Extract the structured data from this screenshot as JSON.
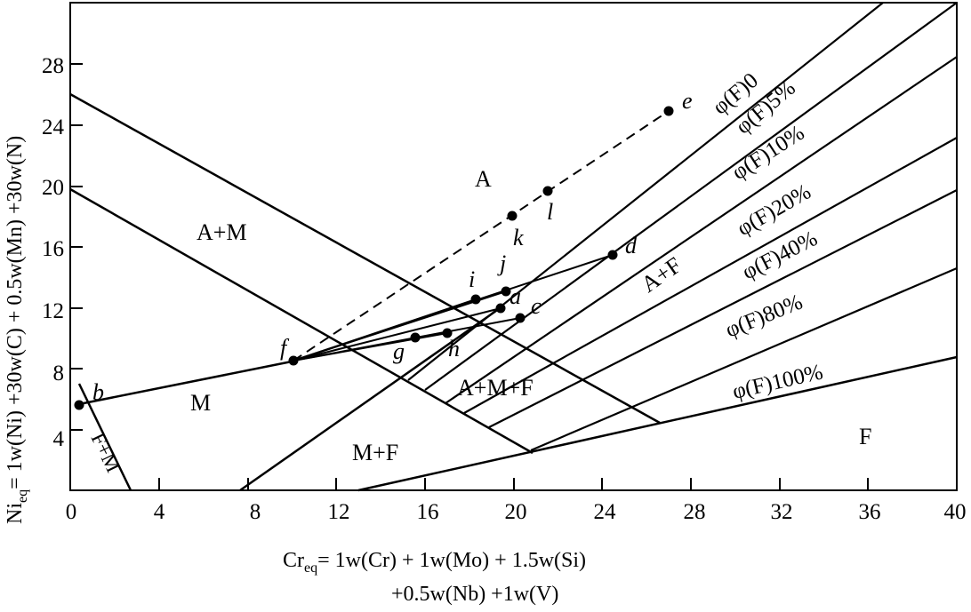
{
  "diagram": {
    "x_axis": {
      "title": "Cr",
      "title_sub": "eq",
      "title_rest_line1": "= 1w(Cr) + 1w(Mo) + 1.5w(Si)",
      "title_line2": "+0.5w(Nb) +1w(V)",
      "ticks": [
        "0",
        "4",
        "8",
        "12",
        "16",
        "20",
        "24",
        "28",
        "32",
        "36",
        "40"
      ],
      "range": [
        0,
        40
      ]
    },
    "y_axis": {
      "title": "Ni",
      "title_sub": "eq",
      "title_rest": "= 1w(Ni) +30w(C) + 0.5w(Mn) +30w(N)",
      "ticks": [
        "4",
        "8",
        "12",
        "16",
        "20",
        "24",
        "28"
      ],
      "range": [
        0,
        30
      ]
    },
    "regions": {
      "A": "A",
      "A_M": "A+M",
      "M": "M",
      "A_F": "A+F",
      "A_M_F": "A+M+F",
      "M_F": "M+F",
      "F": "F",
      "F_M": "F+M"
    },
    "ferrite_lines": {
      "f0": "φ(F)0",
      "f5": "φ(F)5%",
      "f10": "φ(F)10%",
      "f20": "φ(F)20%",
      "f40": "φ(F)40%",
      "f80": "φ(F)80%",
      "f100": "φ(F)100%"
    },
    "points": [
      {
        "label": "a",
        "x": 19.2,
        "y": 11.8
      },
      {
        "label": "b",
        "x": 0.4,
        "y": 5.8
      },
      {
        "label": "c",
        "x": 20.0,
        "y": 11.2
      },
      {
        "label": "d",
        "x": 24.6,
        "y": 15.6
      },
      {
        "label": "e",
        "x": 27.0,
        "y": 24.7
      },
      {
        "label": "f",
        "x": 10.0,
        "y": 8.5
      },
      {
        "label": "g",
        "x": 15.6,
        "y": 10.0
      },
      {
        "label": "h",
        "x": 17.0,
        "y": 10.2
      },
      {
        "label": "i",
        "x": 18.3,
        "y": 12.6
      },
      {
        "label": "j",
        "x": 19.6,
        "y": 13.1
      },
      {
        "label": "k",
        "x": 20.0,
        "y": 17.9
      },
      {
        "label": "l",
        "x": 21.6,
        "y": 19.6
      }
    ]
  }
}
